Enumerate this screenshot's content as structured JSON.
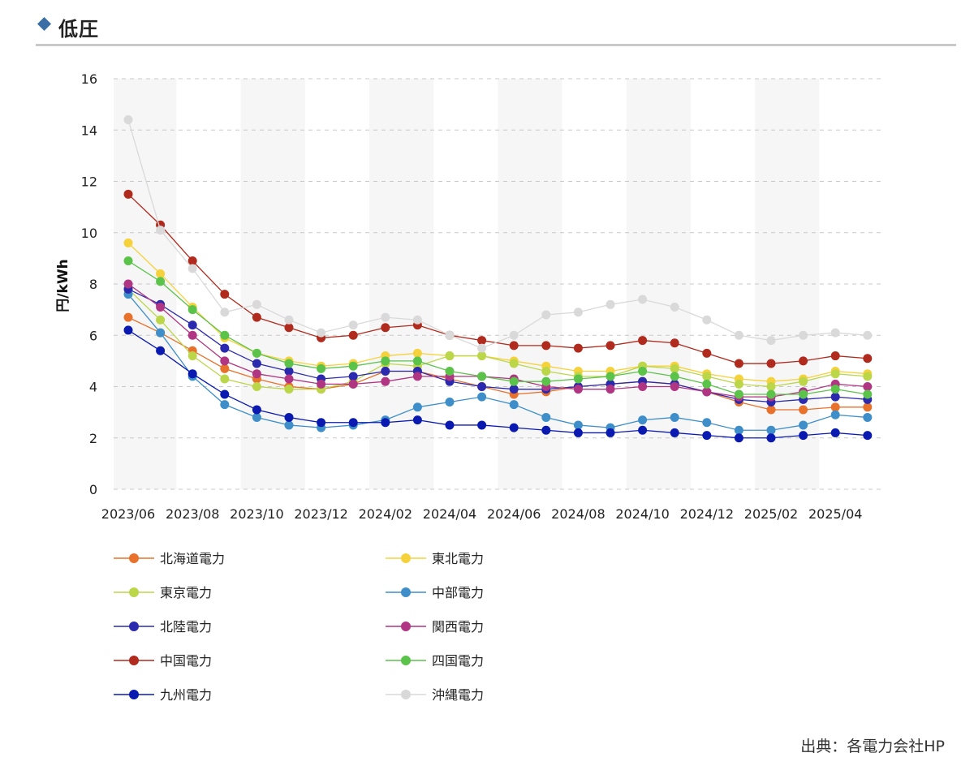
{
  "header": {
    "title": "低圧",
    "marker_color": "#3a6ea5",
    "marker_icon": "diamond-icon"
  },
  "source": "出典：各電力会社HP",
  "chart_data": {
    "type": "line",
    "title": "",
    "xlabel": "",
    "ylabel": "円/kWh",
    "ylim": [
      0,
      16
    ],
    "yticks": [
      0,
      2,
      4,
      6,
      8,
      10,
      12,
      14,
      16
    ],
    "grid": true,
    "legend_position": "bottom",
    "categories": [
      "2023/06",
      "2023/07",
      "2023/08",
      "2023/09",
      "2023/10",
      "2023/11",
      "2023/12",
      "2024/01",
      "2024/02",
      "2024/03",
      "2024/04",
      "2024/05",
      "2024/06",
      "2024/07",
      "2024/08",
      "2024/09",
      "2024/10",
      "2024/11",
      "2024/12",
      "2025/01",
      "2025/02",
      "2025/03",
      "2025/04",
      "2025/05"
    ],
    "tick_labels": [
      "2023/06",
      "2023/08",
      "2023/10",
      "2023/12",
      "2024/02",
      "2024/04",
      "2024/06",
      "2024/08",
      "2024/10",
      "2024/12",
      "2025/02",
      "2025/04"
    ],
    "series": [
      {
        "name": "北海道電力",
        "color": "#e8712c",
        "values": [
          6.7,
          6.1,
          5.4,
          4.7,
          4.3,
          4.0,
          3.9,
          4.1,
          4.6,
          4.6,
          4.3,
          4.0,
          3.7,
          3.8,
          4.0,
          4.1,
          4.2,
          4.1,
          3.8,
          3.4,
          3.1,
          3.1,
          3.2,
          3.2
        ]
      },
      {
        "name": "東北電力",
        "color": "#f5d23c",
        "values": [
          9.6,
          8.4,
          7.1,
          5.9,
          5.3,
          5.0,
          4.8,
          4.9,
          5.2,
          5.3,
          5.2,
          5.2,
          5.0,
          4.8,
          4.6,
          4.6,
          4.8,
          4.8,
          4.5,
          4.3,
          4.2,
          4.3,
          4.6,
          4.5
        ]
      },
      {
        "name": "東京電力",
        "color": "#bcd64a",
        "values": [
          7.8,
          6.6,
          5.2,
          4.3,
          4.0,
          3.9,
          3.9,
          4.2,
          4.9,
          4.8,
          5.2,
          5.2,
          4.9,
          4.6,
          4.4,
          4.4,
          4.8,
          4.7,
          4.4,
          4.1,
          4.0,
          4.2,
          4.5,
          4.4
        ]
      },
      {
        "name": "中部電力",
        "color": "#3d8ec9",
        "values": [
          7.6,
          6.1,
          4.4,
          3.3,
          2.8,
          2.5,
          2.4,
          2.5,
          2.7,
          3.2,
          3.4,
          3.6,
          3.3,
          2.8,
          2.5,
          2.4,
          2.7,
          2.8,
          2.6,
          2.3,
          2.3,
          2.5,
          2.9,
          2.8
        ]
      },
      {
        "name": "北陸電力",
        "color": "#2b2aae",
        "values": [
          7.8,
          7.2,
          6.4,
          5.5,
          4.9,
          4.6,
          4.3,
          4.4,
          4.6,
          4.6,
          4.2,
          4.0,
          3.9,
          3.9,
          4.0,
          4.1,
          4.2,
          4.1,
          3.8,
          3.5,
          3.4,
          3.5,
          3.6,
          3.5
        ]
      },
      {
        "name": "関西電力",
        "color": "#b03582",
        "values": [
          8.0,
          7.1,
          6.0,
          5.0,
          4.5,
          4.3,
          4.1,
          4.1,
          4.2,
          4.4,
          4.4,
          4.4,
          4.3,
          4.0,
          3.9,
          3.9,
          4.0,
          4.0,
          3.8,
          3.6,
          3.6,
          3.8,
          4.1,
          4.0
        ]
      },
      {
        "name": "中国電力",
        "color": "#b02a1d",
        "values": [
          11.5,
          10.3,
          8.9,
          7.6,
          6.7,
          6.3,
          5.9,
          6.0,
          6.3,
          6.4,
          6.0,
          5.8,
          5.6,
          5.6,
          5.5,
          5.6,
          5.8,
          5.7,
          5.3,
          4.9,
          4.9,
          5.0,
          5.2,
          5.1
        ]
      },
      {
        "name": "四国電力",
        "color": "#5bc24a",
        "values": [
          8.9,
          8.1,
          7.0,
          6.0,
          5.3,
          4.9,
          4.7,
          4.8,
          5.0,
          5.0,
          4.6,
          4.4,
          4.2,
          4.2,
          4.3,
          4.4,
          4.6,
          4.4,
          4.1,
          3.7,
          3.7,
          3.7,
          3.9,
          3.7
        ]
      },
      {
        "name": "九州電力",
        "color": "#0a1ab0",
        "values": [
          6.2,
          5.4,
          4.5,
          3.7,
          3.1,
          2.8,
          2.6,
          2.6,
          2.6,
          2.7,
          2.5,
          2.5,
          2.4,
          2.3,
          2.2,
          2.2,
          2.3,
          2.2,
          2.1,
          2.0,
          2.0,
          2.1,
          2.2,
          2.1
        ]
      },
      {
        "name": "沖縄電力",
        "color": "#d9d9d9",
        "values": [
          14.4,
          10.1,
          8.6,
          6.9,
          7.2,
          6.6,
          6.1,
          6.4,
          6.7,
          6.6,
          6.0,
          5.5,
          6.0,
          6.8,
          6.9,
          7.2,
          7.4,
          7.1,
          6.6,
          6.0,
          5.8,
          6.0,
          6.1,
          6.0
        ]
      }
    ]
  }
}
